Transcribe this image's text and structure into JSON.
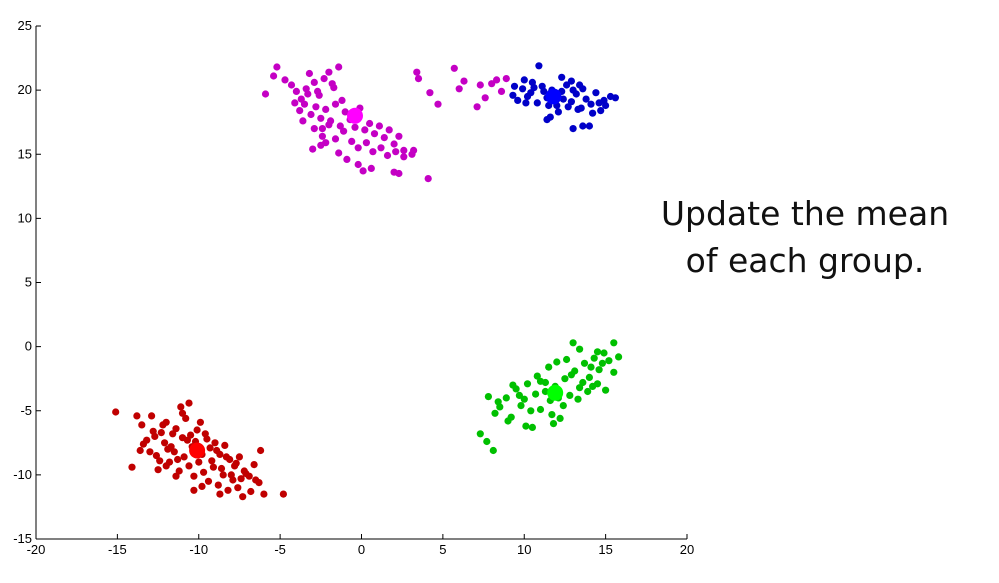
{
  "caption": {
    "line1": "Update the mean",
    "line2": "of each group."
  },
  "chart_data": {
    "type": "scatter",
    "title": "",
    "xlabel": "",
    "ylabel": "",
    "xlim": [
      -20,
      20
    ],
    "ylim": [
      -15,
      25
    ],
    "xticks": [
      -20,
      -15,
      -10,
      -5,
      0,
      5,
      10,
      15,
      20
    ],
    "yticks": [
      -15,
      -10,
      -5,
      0,
      5,
      10,
      15,
      20,
      25
    ],
    "grid": false,
    "legend": "none",
    "groups": [
      {
        "color": "#c400c4",
        "mean": {
          "x": -0.4,
          "y": 18.0,
          "color": "#ff00ff"
        },
        "points": [
          [
            -5.9,
            19.7
          ],
          [
            -5.2,
            21.8
          ],
          [
            -5.4,
            21.1
          ],
          [
            -4.7,
            20.8
          ],
          [
            -4.3,
            20.4
          ],
          [
            -4.0,
            19.9
          ],
          [
            -3.7,
            19.3
          ],
          [
            -3.4,
            20.1
          ],
          [
            -3.2,
            21.3
          ],
          [
            -2.9,
            20.6
          ],
          [
            -2.6,
            19.6
          ],
          [
            -2.3,
            20.9
          ],
          [
            -2.0,
            21.4
          ],
          [
            -1.7,
            20.2
          ],
          [
            -1.4,
            21.8
          ],
          [
            -1.2,
            19.2
          ],
          [
            -4.1,
            19.0
          ],
          [
            -3.8,
            18.4
          ],
          [
            -3.5,
            18.9
          ],
          [
            -3.1,
            18.1
          ],
          [
            -2.8,
            18.7
          ],
          [
            -2.5,
            17.8
          ],
          [
            -2.2,
            18.5
          ],
          [
            -1.9,
            17.6
          ],
          [
            -1.6,
            18.9
          ],
          [
            -1.3,
            17.2
          ],
          [
            -1.0,
            18.3
          ],
          [
            -0.7,
            17.7
          ],
          [
            -0.4,
            17.1
          ],
          [
            -0.1,
            18.6
          ],
          [
            0.2,
            16.9
          ],
          [
            0.5,
            17.4
          ],
          [
            0.8,
            16.6
          ],
          [
            1.1,
            17.2
          ],
          [
            1.4,
            16.3
          ],
          [
            1.7,
            16.9
          ],
          [
            2.0,
            15.8
          ],
          [
            2.3,
            16.4
          ],
          [
            2.6,
            15.3
          ],
          [
            -2.9,
            17.0
          ],
          [
            -2.4,
            16.4
          ],
          [
            -2.0,
            17.3
          ],
          [
            -1.6,
            16.2
          ],
          [
            -1.1,
            16.8
          ],
          [
            -0.6,
            16.0
          ],
          [
            -0.2,
            15.5
          ],
          [
            0.3,
            15.9
          ],
          [
            0.7,
            15.2
          ],
          [
            1.2,
            15.5
          ],
          [
            1.6,
            14.9
          ],
          [
            2.1,
            15.2
          ],
          [
            2.6,
            14.8
          ],
          [
            3.1,
            15.0
          ],
          [
            3.2,
            15.3
          ],
          [
            -0.2,
            14.2
          ],
          [
            0.6,
            13.9
          ],
          [
            2.0,
            13.6
          ],
          [
            2.3,
            13.5
          ],
          [
            4.1,
            13.1
          ],
          [
            -2.5,
            15.7
          ],
          [
            -3.0,
            15.4
          ],
          [
            -1.4,
            15.1
          ],
          [
            -0.9,
            14.6
          ],
          [
            0.1,
            13.7
          ],
          [
            -3.3,
            19.7
          ],
          [
            -2.7,
            19.9
          ],
          [
            -1.8,
            20.5
          ],
          [
            -2.4,
            17.0
          ],
          [
            -3.6,
            17.6
          ],
          [
            -2.2,
            15.9
          ],
          [
            3.4,
            21.4
          ],
          [
            3.5,
            20.9
          ],
          [
            4.2,
            19.8
          ],
          [
            4.7,
            18.9
          ],
          [
            5.7,
            21.7
          ],
          [
            6.0,
            20.1
          ],
          [
            6.3,
            20.7
          ],
          [
            7.3,
            20.4
          ],
          [
            7.6,
            19.4
          ],
          [
            8.0,
            20.5
          ],
          [
            8.3,
            20.8
          ],
          [
            8.6,
            19.9
          ],
          [
            8.9,
            20.9
          ],
          [
            7.1,
            18.7
          ]
        ]
      },
      {
        "color": "#0000c8",
        "mean": {
          "x": 11.8,
          "y": 19.5,
          "color": "#0000ff"
        },
        "points": [
          [
            9.3,
            19.6
          ],
          [
            9.6,
            19.2
          ],
          [
            9.9,
            20.1
          ],
          [
            10.2,
            19.5
          ],
          [
            10.5,
            20.6
          ],
          [
            10.8,
            19.0
          ],
          [
            11.1,
            20.3
          ],
          [
            11.4,
            19.4
          ],
          [
            11.7,
            20.0
          ],
          [
            12.0,
            18.8
          ],
          [
            12.3,
            19.9
          ],
          [
            12.6,
            20.4
          ],
          [
            12.9,
            19.1
          ],
          [
            13.2,
            19.7
          ],
          [
            13.5,
            18.6
          ],
          [
            13.8,
            19.3
          ],
          [
            14.1,
            18.9
          ],
          [
            14.4,
            19.8
          ],
          [
            14.7,
            18.4
          ],
          [
            15.0,
            18.8
          ],
          [
            15.3,
            19.5
          ],
          [
            10.0,
            20.8
          ],
          [
            10.6,
            20.2
          ],
          [
            11.2,
            19.9
          ],
          [
            11.8,
            19.7
          ],
          [
            12.4,
            19.3
          ],
          [
            13.0,
            20.0
          ],
          [
            13.6,
            20.1
          ],
          [
            14.2,
            18.2
          ],
          [
            14.6,
            19.0
          ],
          [
            10.9,
            21.9
          ],
          [
            12.3,
            21.0
          ],
          [
            12.9,
            20.7
          ],
          [
            13.4,
            20.4
          ],
          [
            11.5,
            18.8
          ],
          [
            12.1,
            18.3
          ],
          [
            13.0,
            17.0
          ],
          [
            13.6,
            17.2
          ],
          [
            14.0,
            17.2
          ],
          [
            11.4,
            17.7
          ],
          [
            11.6,
            17.9
          ],
          [
            9.4,
            20.3
          ],
          [
            10.4,
            19.8
          ],
          [
            12.7,
            18.7
          ],
          [
            13.3,
            18.5
          ],
          [
            14.9,
            19.2
          ],
          [
            15.6,
            19.4
          ],
          [
            10.1,
            19.0
          ]
        ]
      },
      {
        "color": "#00c000",
        "mean": {
          "x": 11.9,
          "y": -3.6,
          "color": "#00ff00"
        },
        "points": [
          [
            7.3,
            -6.8
          ],
          [
            7.7,
            -7.4
          ],
          [
            8.1,
            -8.1
          ],
          [
            7.8,
            -3.9
          ],
          [
            8.2,
            -5.2
          ],
          [
            8.5,
            -4.7
          ],
          [
            8.9,
            -4.0
          ],
          [
            9.2,
            -5.5
          ],
          [
            9.5,
            -3.3
          ],
          [
            9.8,
            -4.6
          ],
          [
            10.1,
            -6.2
          ],
          [
            10.4,
            -5.0
          ],
          [
            10.7,
            -3.7
          ],
          [
            11.0,
            -4.9
          ],
          [
            11.3,
            -2.8
          ],
          [
            11.6,
            -4.2
          ],
          [
            11.9,
            -3.1
          ],
          [
            12.2,
            -5.6
          ],
          [
            12.5,
            -2.5
          ],
          [
            12.8,
            -3.8
          ],
          [
            13.1,
            -1.9
          ],
          [
            13.4,
            -3.2
          ],
          [
            13.7,
            -1.3
          ],
          [
            14.0,
            -2.4
          ],
          [
            14.3,
            -0.9
          ],
          [
            14.6,
            -1.8
          ],
          [
            14.9,
            -0.5
          ],
          [
            15.2,
            -1.1
          ],
          [
            15.5,
            -2.0
          ],
          [
            15.8,
            -0.8
          ],
          [
            13.0,
            0.3
          ],
          [
            13.4,
            -0.2
          ],
          [
            14.5,
            -0.4
          ],
          [
            15.5,
            0.3
          ],
          [
            12.0,
            -1.2
          ],
          [
            11.5,
            -1.6
          ],
          [
            10.8,
            -2.3
          ],
          [
            10.2,
            -2.9
          ],
          [
            9.7,
            -3.8
          ],
          [
            9.3,
            -3.0
          ],
          [
            10.5,
            -6.3
          ],
          [
            11.7,
            -5.3
          ],
          [
            12.4,
            -4.6
          ],
          [
            13.3,
            -4.1
          ],
          [
            13.9,
            -3.5
          ],
          [
            14.5,
            -2.9
          ],
          [
            15.0,
            -3.4
          ],
          [
            12.1,
            -4.0
          ],
          [
            11.3,
            -3.5
          ],
          [
            12.9,
            -2.2
          ],
          [
            13.6,
            -2.8
          ],
          [
            14.1,
            -1.6
          ],
          [
            14.8,
            -1.3
          ],
          [
            11.0,
            -2.7
          ],
          [
            9.0,
            -5.8
          ],
          [
            10.0,
            -4.1
          ],
          [
            11.8,
            -6.0
          ],
          [
            8.4,
            -4.3
          ],
          [
            12.6,
            -1.0
          ],
          [
            14.2,
            -3.1
          ]
        ]
      },
      {
        "color": "#c00000",
        "mean": {
          "x": -10.1,
          "y": -8.1,
          "color": "#ff0000"
        },
        "points": [
          [
            -15.1,
            -5.1
          ],
          [
            -14.1,
            -9.4
          ],
          [
            -13.8,
            -5.4
          ],
          [
            -13.5,
            -6.1
          ],
          [
            -13.2,
            -7.3
          ],
          [
            -12.9,
            -5.4
          ],
          [
            -12.6,
            -8.5
          ],
          [
            -12.3,
            -6.7
          ],
          [
            -12.0,
            -5.9
          ],
          [
            -11.7,
            -7.8
          ],
          [
            -11.4,
            -6.4
          ],
          [
            -11.1,
            -4.7
          ],
          [
            -10.8,
            -5.6
          ],
          [
            -10.5,
            -6.9
          ],
          [
            -10.2,
            -7.4
          ],
          [
            -9.9,
            -5.9
          ],
          [
            -9.6,
            -6.8
          ],
          [
            -9.3,
            -7.9
          ],
          [
            -9.0,
            -7.5
          ],
          [
            -8.7,
            -8.4
          ],
          [
            -8.4,
            -7.7
          ],
          [
            -8.1,
            -8.8
          ],
          [
            -7.8,
            -9.3
          ],
          [
            -7.5,
            -8.6
          ],
          [
            -7.2,
            -9.7
          ],
          [
            -6.9,
            -10.1
          ],
          [
            -6.6,
            -9.2
          ],
          [
            -6.3,
            -10.6
          ],
          [
            -6.0,
            -11.5
          ],
          [
            -13.4,
            -7.6
          ],
          [
            -13.0,
            -8.2
          ],
          [
            -12.7,
            -7.0
          ],
          [
            -12.4,
            -8.9
          ],
          [
            -12.1,
            -7.5
          ],
          [
            -11.8,
            -9.0
          ],
          [
            -11.5,
            -8.2
          ],
          [
            -11.2,
            -9.7
          ],
          [
            -10.9,
            -8.6
          ],
          [
            -10.6,
            -9.3
          ],
          [
            -10.3,
            -10.1
          ],
          [
            -10.0,
            -9.0
          ],
          [
            -9.7,
            -9.8
          ],
          [
            -9.4,
            -10.5
          ],
          [
            -9.1,
            -9.4
          ],
          [
            -8.8,
            -10.8
          ],
          [
            -8.5,
            -10.0
          ],
          [
            -8.2,
            -11.2
          ],
          [
            -7.9,
            -10.4
          ],
          [
            -7.6,
            -11.0
          ],
          [
            -7.3,
            -11.7
          ],
          [
            -6.8,
            -11.3
          ],
          [
            -12.2,
            -6.1
          ],
          [
            -11.6,
            -6.8
          ],
          [
            -11.0,
            -7.1
          ],
          [
            -10.4,
            -7.8
          ],
          [
            -9.8,
            -8.4
          ],
          [
            -9.2,
            -8.9
          ],
          [
            -8.6,
            -9.5
          ],
          [
            -8.0,
            -10.0
          ],
          [
            -7.4,
            -10.3
          ],
          [
            -12.8,
            -6.6
          ],
          [
            -11.9,
            -8.0
          ],
          [
            -11.3,
            -8.8
          ],
          [
            -10.7,
            -7.3
          ],
          [
            -10.1,
            -6.5
          ],
          [
            -9.5,
            -7.2
          ],
          [
            -8.9,
            -8.1
          ],
          [
            -8.3,
            -8.6
          ],
          [
            -7.7,
            -9.1
          ],
          [
            -7.1,
            -9.9
          ],
          [
            -6.5,
            -10.4
          ],
          [
            -6.2,
            -8.1
          ],
          [
            -10.6,
            -4.4
          ],
          [
            -11.0,
            -5.2
          ],
          [
            -9.8,
            -10.9
          ],
          [
            -10.3,
            -11.2
          ],
          [
            -8.7,
            -11.5
          ],
          [
            -4.8,
            -11.5
          ],
          [
            -13.6,
            -8.1
          ],
          [
            -12.5,
            -9.6
          ],
          [
            -11.4,
            -10.1
          ],
          [
            -12.0,
            -9.3
          ]
        ]
      }
    ]
  }
}
